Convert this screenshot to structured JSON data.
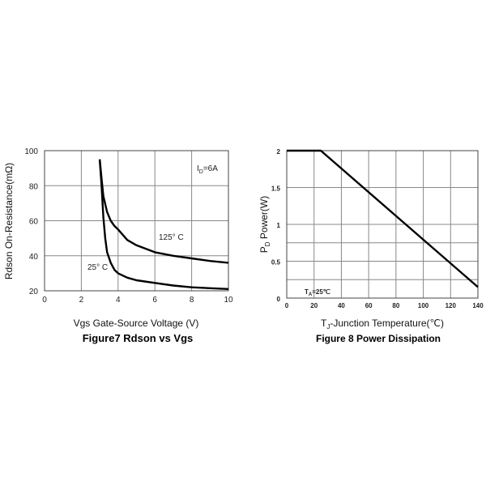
{
  "chart_data": [
    {
      "type": "line",
      "title": "Figure7 Rdson vs Vgs",
      "xlabel": "Vgs Gate-Source Voltage (V)",
      "ylabel": "Rdson On-Resistance(mΩ)",
      "xlim": [
        0,
        10
      ],
      "ylim": [
        20,
        100
      ],
      "xticks": [
        "0",
        "2",
        "4",
        "6",
        "8",
        "10"
      ],
      "yticks": [
        "20",
        "40",
        "60",
        "80",
        "100"
      ],
      "grid": true,
      "annotations": [
        {
          "text": "ID=6A",
          "main": "I",
          "sub": "D",
          "rest": "=6A"
        },
        {
          "text": "125° C",
          "series": "125° C"
        },
        {
          "text": "25° C",
          "series": "25° C"
        }
      ],
      "series": [
        {
          "name": "125° C",
          "x": [
            3.0,
            3.1,
            3.2,
            3.4,
            3.6,
            3.8,
            4.0,
            4.5,
            5.0,
            6.0,
            7.0,
            8.0,
            9.0,
            10.0
          ],
          "y": [
            95,
            84,
            74,
            65,
            60,
            57,
            55,
            49,
            46,
            42,
            40,
            38.5,
            37,
            36
          ]
        },
        {
          "name": "25° C",
          "x": [
            3.0,
            3.1,
            3.2,
            3.3,
            3.4,
            3.6,
            3.8,
            4.0,
            4.5,
            5.0,
            6.0,
            7.0,
            8.0,
            9.0,
            10.0
          ],
          "y": [
            95,
            80,
            62,
            50,
            42,
            36,
            32,
            30,
            27.5,
            26,
            24.5,
            23,
            22,
            21.5,
            21
          ]
        }
      ]
    },
    {
      "type": "line",
      "title": "Figure 8 Power Dissipation",
      "xlabel": "TJ-Junction Temperature(℃)",
      "ylabel": "PD  Power(W)",
      "xlim": [
        0,
        140
      ],
      "ylim": [
        0,
        2
      ],
      "xticks": [
        "0",
        "20",
        "40",
        "60",
        "80",
        "100",
        "120",
        "140"
      ],
      "yticks": [
        "0",
        "0.5",
        "1",
        "1.5",
        "2"
      ],
      "grid": true,
      "annotations": [
        {
          "text": "TA=25℃",
          "main": "T",
          "sub": "A",
          "rest": "=25℃"
        }
      ],
      "series": [
        {
          "x": [
            0,
            25,
            140
          ],
          "y": [
            2,
            2,
            0.15
          ]
        }
      ]
    }
  ]
}
